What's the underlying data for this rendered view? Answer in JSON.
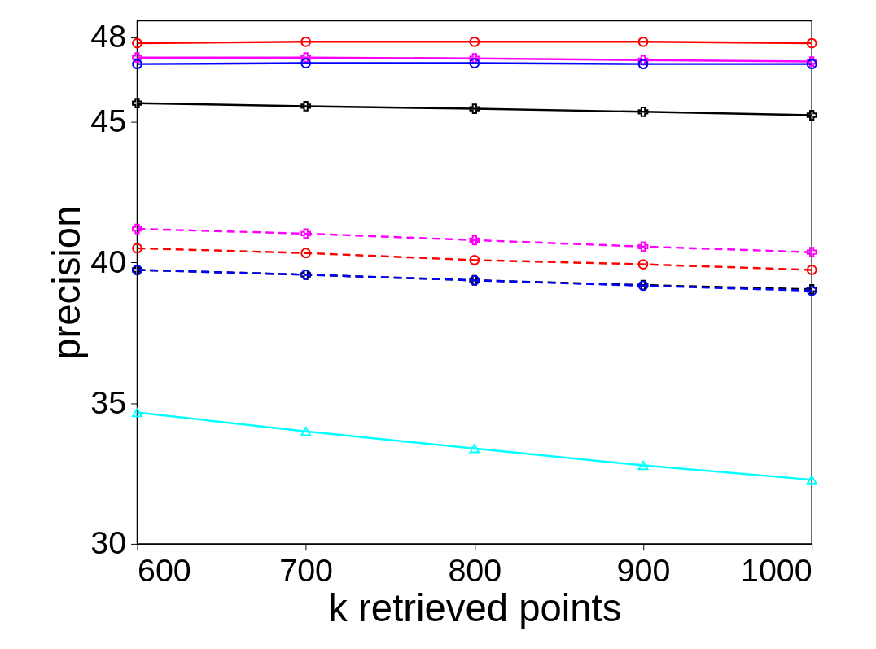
{
  "chart_data": {
    "type": "line",
    "xlabel": "k retrieved points",
    "ylabel": "precision",
    "x": [
      600,
      700,
      800,
      900,
      1000
    ],
    "xlim": [
      600,
      1000
    ],
    "xticks": [
      600,
      700,
      800,
      900,
      1000
    ],
    "ylim": [
      30,
      48.6
    ],
    "yticks": [
      30,
      35,
      40,
      45,
      48
    ],
    "grid": false,
    "series": [
      {
        "color": "#ff0000",
        "marker": "circle",
        "line_style": "solid",
        "values": [
          47.8,
          47.85,
          47.85,
          47.85,
          47.8
        ]
      },
      {
        "color": "#ff00ff",
        "marker": "cross",
        "line_style": "solid",
        "values": [
          47.29,
          47.29,
          47.26,
          47.2,
          47.15
        ]
      },
      {
        "color": "#0000ff",
        "marker": "circle",
        "line_style": "solid",
        "values": [
          47.06,
          47.09,
          47.09,
          47.06,
          47.06
        ]
      },
      {
        "color": "#000000",
        "marker": "cross",
        "line_style": "solid",
        "values": [
          45.67,
          45.56,
          45.47,
          45.36,
          45.24
        ]
      },
      {
        "color": "#ff00ff",
        "marker": "cross",
        "line_style": "dashed",
        "values": [
          41.2,
          41.03,
          40.8,
          40.57,
          40.37
        ]
      },
      {
        "color": "#ff0000",
        "marker": "circle",
        "line_style": "dashed",
        "values": [
          40.51,
          40.34,
          40.09,
          39.94,
          39.74
        ]
      },
      {
        "color": "#000000",
        "marker": "cross",
        "line_style": "dashed",
        "values": [
          39.74,
          39.57,
          39.37,
          39.2,
          39.05
        ]
      },
      {
        "color": "#0000ff",
        "marker": "circle",
        "line_style": "dashed",
        "values": [
          39.74,
          39.57,
          39.37,
          39.18,
          39.0
        ]
      },
      {
        "color": "#00ffff",
        "marker": "triangle",
        "line_style": "solid",
        "values": [
          34.67,
          34.0,
          33.39,
          32.79,
          32.28
        ]
      }
    ]
  }
}
